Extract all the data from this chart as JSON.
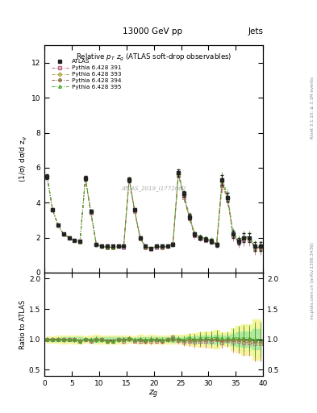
{
  "title_top": "13000 GeV pp",
  "title_right": "Jets",
  "plot_title": "Relative $p_T$ $z_g$ (ATLAS soft-drop observables)",
  "xlabel": "$z_g$",
  "ylabel_main": "(1/σ) dσ/d z$_g$",
  "ylabel_ratio": "Ratio to ATLAS",
  "watermark": "ATLAS_2019_I1772062",
  "rivet_label": "Rivet 3.1.10; ≥ 3.1M events",
  "arxiv_label": "mcplots.cern.ch [arXiv:1306.3436]",
  "x": [
    0.5,
    1.5,
    2.5,
    3.5,
    4.5,
    5.5,
    6.5,
    7.5,
    8.5,
    9.5,
    10.5,
    11.5,
    12.5,
    13.5,
    14.5,
    15.5,
    16.5,
    17.5,
    18.5,
    19.5,
    20.5,
    21.5,
    22.5,
    23.5,
    24.5,
    25.5,
    26.5,
    27.5,
    28.5,
    29.5,
    30.5,
    31.5,
    32.5,
    33.5,
    34.5,
    35.5,
    36.5,
    37.5,
    38.5,
    39.5
  ],
  "atlas_y": [
    5.5,
    3.6,
    2.7,
    2.2,
    2.0,
    1.85,
    1.8,
    5.4,
    3.5,
    1.6,
    1.5,
    1.5,
    1.5,
    1.5,
    1.5,
    5.3,
    3.6,
    2.0,
    1.5,
    1.4,
    1.5,
    1.5,
    1.5,
    1.6,
    5.7,
    4.5,
    3.2,
    2.2,
    2.0,
    1.9,
    1.8,
    1.6,
    5.3,
    4.3,
    2.2,
    1.8,
    2.0,
    2.0,
    1.5,
    1.5
  ],
  "atlas_yerr": [
    0.15,
    0.1,
    0.08,
    0.07,
    0.06,
    0.06,
    0.06,
    0.15,
    0.1,
    0.06,
    0.05,
    0.05,
    0.05,
    0.05,
    0.05,
    0.15,
    0.1,
    0.07,
    0.05,
    0.05,
    0.05,
    0.05,
    0.05,
    0.06,
    0.2,
    0.18,
    0.15,
    0.12,
    0.12,
    0.12,
    0.12,
    0.12,
    0.3,
    0.25,
    0.2,
    0.2,
    0.25,
    0.25,
    0.25,
    0.25
  ],
  "p391_y": [
    5.5,
    3.6,
    2.7,
    2.2,
    2.0,
    1.85,
    1.75,
    5.4,
    3.4,
    1.6,
    1.5,
    1.45,
    1.45,
    1.5,
    1.45,
    5.35,
    3.5,
    1.95,
    1.45,
    1.35,
    1.45,
    1.45,
    1.5,
    1.65,
    5.6,
    4.3,
    3.1,
    2.1,
    1.95,
    1.85,
    1.75,
    1.6,
    5.0,
    4.2,
    2.1,
    1.75,
    1.9,
    1.9,
    1.4,
    1.4
  ],
  "p393_y": [
    5.5,
    3.6,
    2.7,
    2.2,
    2.0,
    1.85,
    1.75,
    5.4,
    3.45,
    1.6,
    1.5,
    1.45,
    1.45,
    1.5,
    1.5,
    5.3,
    3.55,
    2.0,
    1.45,
    1.4,
    1.5,
    1.45,
    1.5,
    1.6,
    5.65,
    4.4,
    3.15,
    2.15,
    2.0,
    1.9,
    1.8,
    1.6,
    5.15,
    4.25,
    2.15,
    1.8,
    1.95,
    1.95,
    1.45,
    1.4
  ],
  "p394_y": [
    5.5,
    3.6,
    2.7,
    2.2,
    2.0,
    1.85,
    1.75,
    5.4,
    3.45,
    1.6,
    1.5,
    1.45,
    1.45,
    1.5,
    1.5,
    5.35,
    3.55,
    2.0,
    1.45,
    1.4,
    1.5,
    1.45,
    1.5,
    1.6,
    5.65,
    4.4,
    3.2,
    2.2,
    2.0,
    1.9,
    1.8,
    1.6,
    5.2,
    4.3,
    2.2,
    1.8,
    2.0,
    2.0,
    1.45,
    1.45
  ],
  "p395_y": [
    5.5,
    3.6,
    2.7,
    2.2,
    2.0,
    1.85,
    1.75,
    5.45,
    3.5,
    1.6,
    1.5,
    1.45,
    1.45,
    1.5,
    1.5,
    5.4,
    3.6,
    2.0,
    1.5,
    1.4,
    1.5,
    1.5,
    1.5,
    1.65,
    5.75,
    4.5,
    3.3,
    2.2,
    2.05,
    1.95,
    1.85,
    1.65,
    5.4,
    4.4,
    2.25,
    1.85,
    2.05,
    2.05,
    1.5,
    1.5
  ],
  "p391_yerr": [
    0.1,
    0.07,
    0.05,
    0.05,
    0.04,
    0.04,
    0.04,
    0.1,
    0.08,
    0.04,
    0.04,
    0.04,
    0.04,
    0.04,
    0.04,
    0.1,
    0.08,
    0.05,
    0.04,
    0.04,
    0.04,
    0.04,
    0.04,
    0.05,
    0.22,
    0.22,
    0.18,
    0.16,
    0.16,
    0.16,
    0.16,
    0.16,
    0.42,
    0.38,
    0.32,
    0.32,
    0.38,
    0.38,
    0.38,
    0.38
  ],
  "p393_yerr": [
    0.1,
    0.07,
    0.05,
    0.05,
    0.04,
    0.04,
    0.04,
    0.1,
    0.08,
    0.04,
    0.04,
    0.04,
    0.04,
    0.04,
    0.04,
    0.1,
    0.08,
    0.05,
    0.04,
    0.04,
    0.04,
    0.04,
    0.04,
    0.05,
    0.18,
    0.18,
    0.16,
    0.14,
    0.14,
    0.14,
    0.14,
    0.14,
    0.33,
    0.3,
    0.26,
    0.26,
    0.3,
    0.3,
    0.3,
    0.3
  ],
  "p394_yerr": [
    0.1,
    0.07,
    0.05,
    0.05,
    0.04,
    0.04,
    0.04,
    0.1,
    0.08,
    0.04,
    0.04,
    0.04,
    0.04,
    0.04,
    0.04,
    0.1,
    0.08,
    0.05,
    0.04,
    0.04,
    0.04,
    0.04,
    0.04,
    0.05,
    0.18,
    0.18,
    0.16,
    0.14,
    0.14,
    0.14,
    0.14,
    0.14,
    0.33,
    0.3,
    0.26,
    0.26,
    0.3,
    0.3,
    0.3,
    0.3
  ],
  "p395_yerr": [
    0.1,
    0.07,
    0.05,
    0.05,
    0.04,
    0.04,
    0.04,
    0.1,
    0.08,
    0.04,
    0.04,
    0.04,
    0.04,
    0.04,
    0.04,
    0.1,
    0.08,
    0.05,
    0.04,
    0.04,
    0.04,
    0.04,
    0.04,
    0.05,
    0.22,
    0.22,
    0.18,
    0.16,
    0.16,
    0.16,
    0.16,
    0.16,
    0.38,
    0.35,
    0.28,
    0.28,
    0.35,
    0.35,
    0.35,
    0.35
  ],
  "atlas_color": "#222222",
  "p391_color": "#bb6688",
  "p393_color": "#aaaa44",
  "p394_color": "#886644",
  "p395_color": "#44aa22",
  "ylim_main": [
    0,
    13
  ],
  "ylim_ratio": [
    0.4,
    2.1
  ],
  "xlim": [
    0,
    40
  ],
  "ratio_band_yellow": "#f5f5a0",
  "ratio_band_green": "#b0e8a0",
  "ratio_line_color": "#00bb00",
  "background_color": "#ffffff"
}
